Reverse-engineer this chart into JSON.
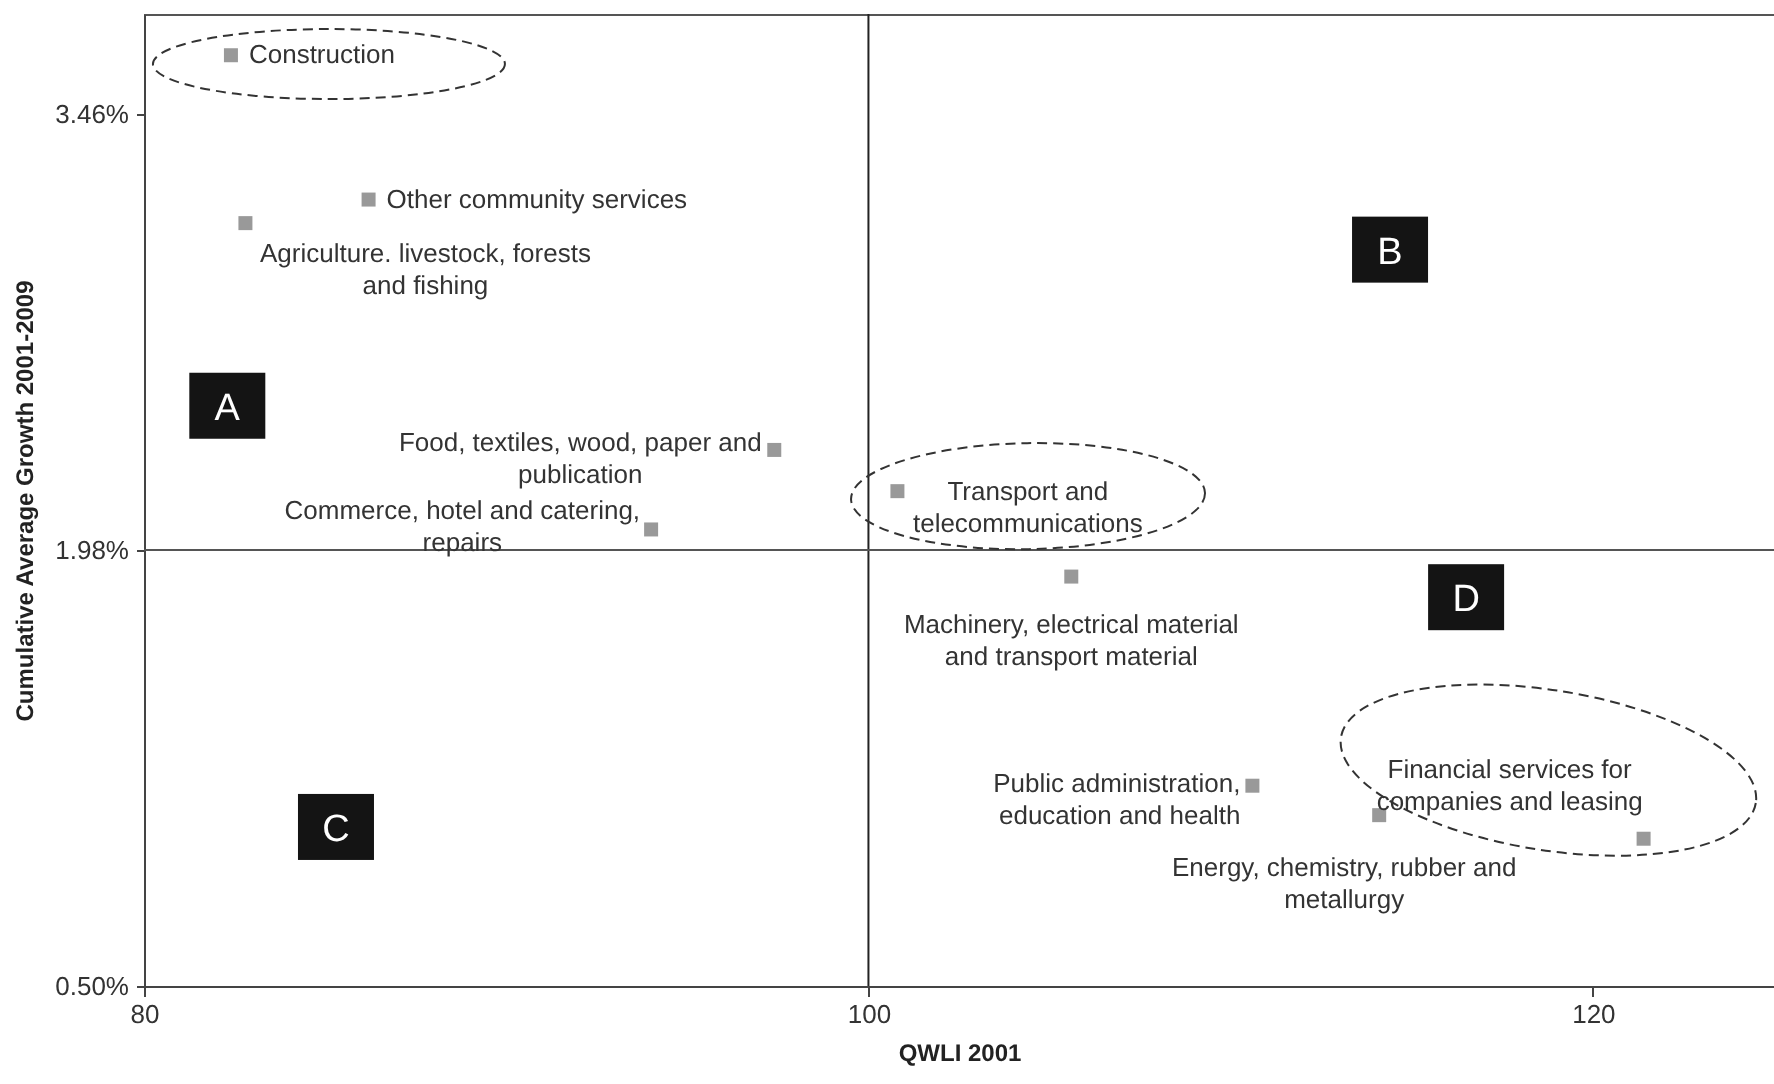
{
  "chart_data": {
    "type": "scatter",
    "xlabel": "QWLI 2001",
    "ylabel": "Cumulative Average Growth 2001-2009",
    "x": [
      82.4,
      86.2,
      82.8,
      97.4,
      94.0,
      100.8,
      105.6,
      110.6,
      114.1,
      121.4
    ],
    "values": [
      3.66,
      3.17,
      3.09,
      2.32,
      2.05,
      2.18,
      1.89,
      1.18,
      1.08,
      1.0
    ],
    "color": "#999999",
    "marker": "square",
    "xlim": [
      80,
      125
    ],
    "xticks": [
      80,
      100,
      120
    ],
    "ylim": [
      0.5,
      3.8
    ],
    "yticks": [
      {
        "value": 0.5,
        "label": "0.50%"
      },
      {
        "value": 1.98,
        "label": "1.98%"
      },
      {
        "value": 3.46,
        "label": "3.46%"
      }
    ],
    "ref_lines": [
      {
        "axis": "x",
        "value": 100,
        "color": "#222222"
      },
      {
        "axis": "y",
        "value": 1.98,
        "color": "#555555"
      }
    ],
    "annotations": [
      {
        "text": "Construction",
        "x": 82.4,
        "y": 3.66
      },
      {
        "text": "Other community services",
        "x": 86.2,
        "y": 3.17
      },
      {
        "text": "Agriculture. livestock, forests and fishing",
        "x": 82.8,
        "y": 3.09
      },
      {
        "text": "Food, textiles, wood, paper and publication",
        "x": 97.4,
        "y": 2.32
      },
      {
        "text": "Commerce, hotel and catering, repairs",
        "x": 94.0,
        "y": 2.05
      },
      {
        "text": "Transport and telecommunications",
        "x": 100.8,
        "y": 2.18
      },
      {
        "text": "Machinery, electrical material and transport material",
        "x": 105.6,
        "y": 1.89
      },
      {
        "text": "Public administration, education and health",
        "x": 110.6,
        "y": 1.18
      },
      {
        "text": "Energy, chemistry, rubber and metallurgy",
        "x": 114.1,
        "y": 1.08
      },
      {
        "text": "Financial services for companies and leasing",
        "x": 121.4,
        "y": 1.0
      },
      {
        "text": "A",
        "x": 82.3,
        "y": 2.47
      },
      {
        "text": "B",
        "x": 114.4,
        "y": 3.0
      },
      {
        "text": "C",
        "x": 85.3,
        "y": 1.04
      },
      {
        "text": "D",
        "x": 116.5,
        "y": 1.82
      }
    ]
  }
}
